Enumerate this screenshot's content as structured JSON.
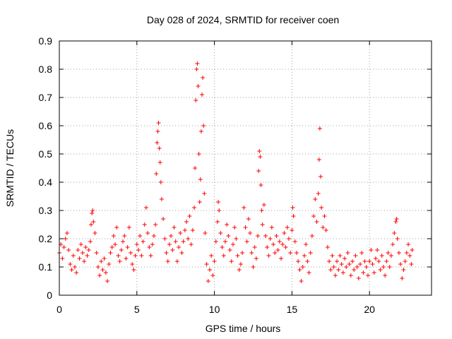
{
  "chart_data": {
    "type": "scatter",
    "title": "Day 028 of 2024, SRMTID for receiver coen",
    "xlabel": "GPS time / hours",
    "ylabel": "SRMTID / TECUs",
    "xlim": [
      0,
      24
    ],
    "ylim": [
      0,
      0.9
    ],
    "xticks": [
      "0",
      "5",
      "10",
      "15",
      "20"
    ],
    "yticks": [
      "0",
      "0.1",
      "0.2",
      "0.3",
      "0.4",
      "0.5",
      "0.6",
      "0.7",
      "0.8",
      "0.9"
    ],
    "grid": true,
    "marker": "plus",
    "color": "#ff0000",
    "series": [
      {
        "name": "SRMTID",
        "points": [
          [
            0.0,
            0.15
          ],
          [
            0.1,
            0.18
          ],
          [
            0.2,
            0.13
          ],
          [
            0.3,
            0.17
          ],
          [
            0.4,
            0.2
          ],
          [
            0.5,
            0.22
          ],
          [
            0.6,
            0.16
          ],
          [
            0.7,
            0.11
          ],
          [
            0.8,
            0.09
          ],
          [
            0.9,
            0.14
          ],
          [
            1.0,
            0.1
          ],
          [
            1.1,
            0.08
          ],
          [
            1.2,
            0.16
          ],
          [
            1.3,
            0.13
          ],
          [
            1.4,
            0.18
          ],
          [
            1.5,
            0.15
          ],
          [
            1.6,
            0.12
          ],
          [
            1.7,
            0.17
          ],
          [
            1.8,
            0.14
          ],
          [
            1.9,
            0.16
          ],
          [
            2.0,
            0.19
          ],
          [
            2.05,
            0.25
          ],
          [
            2.1,
            0.29
          ],
          [
            2.15,
            0.3
          ],
          [
            2.2,
            0.26
          ],
          [
            2.3,
            0.22
          ],
          [
            2.4,
            0.15
          ],
          [
            2.5,
            0.1
          ],
          [
            2.6,
            0.07
          ],
          [
            2.7,
            0.12
          ],
          [
            2.8,
            0.09
          ],
          [
            2.9,
            0.13
          ],
          [
            3.0,
            0.08
          ],
          [
            3.1,
            0.05
          ],
          [
            3.2,
            0.11
          ],
          [
            3.3,
            0.15
          ],
          [
            3.4,
            0.17
          ],
          [
            3.5,
            0.21
          ],
          [
            3.6,
            0.18
          ],
          [
            3.7,
            0.24
          ],
          [
            3.8,
            0.14
          ],
          [
            3.9,
            0.12
          ],
          [
            4.0,
            0.16
          ],
          [
            4.1,
            0.19
          ],
          [
            4.2,
            0.21
          ],
          [
            4.3,
            0.13
          ],
          [
            4.4,
            0.17
          ],
          [
            4.5,
            0.24
          ],
          [
            4.6,
            0.15
          ],
          [
            4.7,
            0.11
          ],
          [
            4.8,
            0.09
          ],
          [
            4.9,
            0.14
          ],
          [
            5.0,
            0.18
          ],
          [
            5.1,
            0.16
          ],
          [
            5.2,
            0.21
          ],
          [
            5.3,
            0.14
          ],
          [
            5.4,
            0.19
          ],
          [
            5.5,
            0.25
          ],
          [
            5.6,
            0.31
          ],
          [
            5.7,
            0.22
          ],
          [
            5.8,
            0.17
          ],
          [
            5.9,
            0.14
          ],
          [
            6.0,
            0.18
          ],
          [
            6.1,
            0.21
          ],
          [
            6.2,
            0.25
          ],
          [
            6.25,
            0.43
          ],
          [
            6.3,
            0.54
          ],
          [
            6.35,
            0.58
          ],
          [
            6.4,
            0.61
          ],
          [
            6.45,
            0.52
          ],
          [
            6.5,
            0.47
          ],
          [
            6.55,
            0.4
          ],
          [
            6.6,
            0.34
          ],
          [
            6.7,
            0.27
          ],
          [
            6.8,
            0.2
          ],
          [
            6.9,
            0.15
          ],
          [
            7.0,
            0.12
          ],
          [
            7.1,
            0.18
          ],
          [
            7.2,
            0.21
          ],
          [
            7.3,
            0.16
          ],
          [
            7.4,
            0.24
          ],
          [
            7.5,
            0.19
          ],
          [
            7.6,
            0.12
          ],
          [
            7.7,
            0.17
          ],
          [
            7.8,
            0.22
          ],
          [
            7.9,
            0.15
          ],
          [
            8.0,
            0.19
          ],
          [
            8.1,
            0.23
          ],
          [
            8.2,
            0.26
          ],
          [
            8.3,
            0.2
          ],
          [
            8.4,
            0.28
          ],
          [
            8.5,
            0.18
          ],
          [
            8.6,
            0.23
          ],
          [
            8.7,
            0.31
          ],
          [
            8.75,
            0.45
          ],
          [
            8.8,
            0.69
          ],
          [
            8.85,
            0.8
          ],
          [
            8.9,
            0.82
          ],
          [
            8.95,
            0.74
          ],
          [
            9.0,
            0.5
          ],
          [
            9.05,
            0.33
          ],
          [
            9.1,
            0.41
          ],
          [
            9.15,
            0.58
          ],
          [
            9.2,
            0.71
          ],
          [
            9.25,
            0.77
          ],
          [
            9.3,
            0.6
          ],
          [
            9.35,
            0.36
          ],
          [
            9.4,
            0.22
          ],
          [
            9.5,
            0.11
          ],
          [
            9.6,
            0.05
          ],
          [
            9.7,
            0.09
          ],
          [
            9.8,
            0.14
          ],
          [
            9.9,
            0.07
          ],
          [
            10.0,
            0.12
          ],
          [
            10.1,
            0.19
          ],
          [
            10.2,
            0.26
          ],
          [
            10.25,
            0.33
          ],
          [
            10.3,
            0.3
          ],
          [
            10.4,
            0.22
          ],
          [
            10.5,
            0.17
          ],
          [
            10.6,
            0.14
          ],
          [
            10.7,
            0.19
          ],
          [
            10.8,
            0.25
          ],
          [
            10.9,
            0.21
          ],
          [
            11.0,
            0.16
          ],
          [
            11.1,
            0.12
          ],
          [
            11.2,
            0.18
          ],
          [
            11.3,
            0.24
          ],
          [
            11.4,
            0.2
          ],
          [
            11.5,
            0.14
          ],
          [
            11.6,
            0.09
          ],
          [
            11.7,
            0.11
          ],
          [
            11.8,
            0.15
          ],
          [
            11.9,
            0.31
          ],
          [
            12.0,
            0.24
          ],
          [
            12.1,
            0.19
          ],
          [
            12.2,
            0.27
          ],
          [
            12.3,
            0.22
          ],
          [
            12.4,
            0.15
          ],
          [
            12.5,
            0.1
          ],
          [
            12.6,
            0.17
          ],
          [
            12.7,
            0.13
          ],
          [
            12.8,
            0.21
          ],
          [
            12.85,
            0.44
          ],
          [
            12.9,
            0.51
          ],
          [
            12.95,
            0.49
          ],
          [
            13.0,
            0.39
          ],
          [
            13.05,
            0.3
          ],
          [
            13.1,
            0.25
          ],
          [
            13.2,
            0.32
          ],
          [
            13.3,
            0.21
          ],
          [
            13.4,
            0.17
          ],
          [
            13.5,
            0.14
          ],
          [
            13.6,
            0.2
          ],
          [
            13.7,
            0.24
          ],
          [
            13.8,
            0.18
          ],
          [
            13.9,
            0.15
          ],
          [
            14.0,
            0.21
          ],
          [
            14.1,
            0.16
          ],
          [
            14.2,
            0.19
          ],
          [
            14.3,
            0.13
          ],
          [
            14.4,
            0.18
          ],
          [
            14.5,
            0.22
          ],
          [
            14.6,
            0.17
          ],
          [
            14.7,
            0.24
          ],
          [
            14.8,
            0.2
          ],
          [
            14.9,
            0.15
          ],
          [
            15.0,
            0.23
          ],
          [
            15.05,
            0.31
          ],
          [
            15.1,
            0.28
          ],
          [
            15.2,
            0.19
          ],
          [
            15.3,
            0.15
          ],
          [
            15.4,
            0.12
          ],
          [
            15.5,
            0.09
          ],
          [
            15.6,
            0.05
          ],
          [
            15.7,
            0.1
          ],
          [
            15.8,
            0.14
          ],
          [
            15.9,
            0.18
          ],
          [
            16.0,
            0.12
          ],
          [
            16.1,
            0.08
          ],
          [
            16.2,
            0.15
          ],
          [
            16.3,
            0.21
          ],
          [
            16.4,
            0.28
          ],
          [
            16.5,
            0.34
          ],
          [
            16.6,
            0.26
          ],
          [
            16.7,
            0.36
          ],
          [
            16.75,
            0.48
          ],
          [
            16.8,
            0.59
          ],
          [
            16.85,
            0.42
          ],
          [
            16.9,
            0.31
          ],
          [
            17.0,
            0.24
          ],
          [
            17.1,
            0.28
          ],
          [
            17.2,
            0.23
          ],
          [
            17.3,
            0.17
          ],
          [
            17.4,
            0.12
          ],
          [
            17.5,
            0.09
          ],
          [
            17.6,
            0.14
          ],
          [
            17.7,
            0.1
          ],
          [
            17.8,
            0.07
          ],
          [
            17.9,
            0.12
          ],
          [
            18.0,
            0.09
          ],
          [
            18.1,
            0.14
          ],
          [
            18.2,
            0.11
          ],
          [
            18.3,
            0.08
          ],
          [
            18.4,
            0.13
          ],
          [
            18.5,
            0.1
          ],
          [
            18.6,
            0.15
          ],
          [
            18.7,
            0.11
          ],
          [
            18.8,
            0.07
          ],
          [
            18.9,
            0.12
          ],
          [
            19.0,
            0.09
          ],
          [
            19.1,
            0.14
          ],
          [
            19.2,
            0.1
          ],
          [
            19.3,
            0.06
          ],
          [
            19.4,
            0.11
          ],
          [
            19.5,
            0.15
          ],
          [
            19.6,
            0.08
          ],
          [
            19.7,
            0.12
          ],
          [
            19.8,
            0.1
          ],
          [
            19.9,
            0.07
          ],
          [
            20.0,
            0.12
          ],
          [
            20.1,
            0.16
          ],
          [
            20.2,
            0.11
          ],
          [
            20.3,
            0.08
          ],
          [
            20.4,
            0.13
          ],
          [
            20.5,
            0.16
          ],
          [
            20.6,
            0.12
          ],
          [
            20.7,
            0.09
          ],
          [
            20.8,
            0.14
          ],
          [
            20.9,
            0.1
          ],
          [
            21.0,
            0.07
          ],
          [
            21.1,
            0.12
          ],
          [
            21.2,
            0.15
          ],
          [
            21.3,
            0.1
          ],
          [
            21.4,
            0.14
          ],
          [
            21.5,
            0.18
          ],
          [
            21.6,
            0.22
          ],
          [
            21.7,
            0.26
          ],
          [
            21.75,
            0.27
          ],
          [
            21.8,
            0.2
          ],
          [
            21.9,
            0.15
          ],
          [
            22.0,
            0.11
          ],
          [
            22.1,
            0.06
          ],
          [
            22.2,
            0.09
          ],
          [
            22.3,
            0.12
          ],
          [
            22.4,
            0.15
          ],
          [
            22.5,
            0.18
          ],
          [
            22.6,
            0.14
          ],
          [
            22.7,
            0.11
          ],
          [
            22.75,
            0.16
          ]
        ]
      }
    ]
  }
}
